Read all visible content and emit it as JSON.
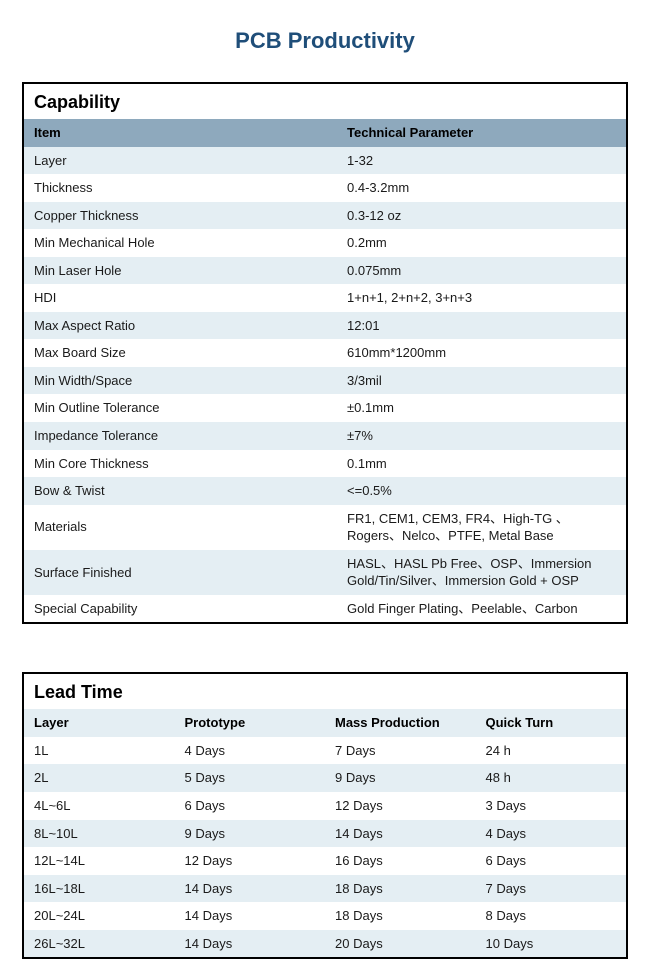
{
  "page_title": "PCB Productivity",
  "colors": {
    "title_color": "#1f4e79",
    "header_row_bg": "#8ea9bd",
    "odd_row_bg": "#e4eef3",
    "even_row_bg": "#ffffff",
    "border_color": "#000000",
    "text_color": "#1a1a1a",
    "background": "#ffffff"
  },
  "typography": {
    "title_fontsize": 22,
    "section_title_fontsize": 18,
    "body_fontsize": 13,
    "font_family": "Arial"
  },
  "capability": {
    "section_title": "Capability",
    "columns": [
      "Item",
      "Technical Parameter"
    ],
    "rows": [
      [
        "Layer",
        "1-32"
      ],
      [
        "Thickness",
        "0.4-3.2mm"
      ],
      [
        "Copper Thickness",
        "0.3-12 oz"
      ],
      [
        "Min Mechanical Hole",
        "0.2mm"
      ],
      [
        "Min Laser Hole",
        "0.075mm"
      ],
      [
        "HDI",
        "1+n+1, 2+n+2, 3+n+3"
      ],
      [
        "Max Aspect Ratio",
        "12:01"
      ],
      [
        "Max Board Size",
        "610mm*1200mm"
      ],
      [
        "Min Width/Space",
        "3/3mil"
      ],
      [
        "Min Outline Tolerance",
        "±0.1mm"
      ],
      [
        "Impedance Tolerance",
        "±7%"
      ],
      [
        "Min Core Thickness",
        "0.1mm"
      ],
      [
        "Bow & Twist",
        "<=0.5%"
      ],
      [
        "Materials",
        "FR1, CEM1, CEM3, FR4、High-TG 、Rogers、Nelco、PTFE, Metal Base"
      ],
      [
        "Surface Finished",
        "HASL、HASL Pb Free、OSP、Immersion Gold/Tin/Silver、Immersion Gold + OSP"
      ],
      [
        "Special Capability",
        "Gold Finger Plating、Peelable、Carbon"
      ]
    ]
  },
  "lead_time": {
    "section_title": "Lead Time",
    "columns": [
      "Layer",
      "Prototype",
      "Mass Production",
      "Quick Turn"
    ],
    "rows": [
      [
        "1L",
        "4 Days",
        "7 Days",
        "24 h"
      ],
      [
        "2L",
        "5 Days",
        "9 Days",
        "48 h"
      ],
      [
        "4L~6L",
        "6 Days",
        "12 Days",
        "3 Days"
      ],
      [
        "8L~10L",
        "9 Days",
        "14 Days",
        "4 Days"
      ],
      [
        "12L~14L",
        "12 Days",
        "16 Days",
        "6 Days"
      ],
      [
        "16L~18L",
        "14 Days",
        "18 Days",
        "7 Days"
      ],
      [
        "20L~24L",
        "14 Days",
        "18 Days",
        "8 Days"
      ],
      [
        "26L~32L",
        "14 Days",
        "20 Days",
        "10 Days"
      ]
    ]
  }
}
